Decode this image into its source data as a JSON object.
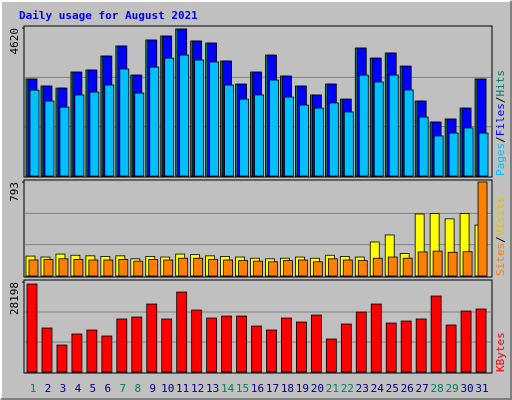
{
  "chart_data": [
    {
      "type": "bar",
      "title": "Daily usage for August 2021",
      "categories": [
        "1",
        "2",
        "3",
        "4",
        "5",
        "6",
        "7",
        "8",
        "9",
        "10",
        "11",
        "12",
        "13",
        "14",
        "15",
        "16",
        "17",
        "18",
        "19",
        "20",
        "21",
        "22",
        "23",
        "24",
        "25",
        "26",
        "27",
        "28",
        "29",
        "30",
        "31"
      ],
      "highlighted_categories": [
        "1",
        "7",
        "8",
        "14",
        "15",
        "21",
        "22",
        "28",
        "29"
      ],
      "highlight_color": "#00805c",
      "category_color": "#000080",
      "legend_separator": "/",
      "ylim": [
        0,
        4620
      ],
      "yticks": [
        4620
      ],
      "series": [
        {
          "name": "Hits",
          "color": "#00805c",
          "values": [
            3030,
            2810,
            2745,
            3245,
            3310,
            3745,
            4060,
            3150,
            4245,
            4370,
            4590,
            4215,
            4150,
            3590,
            2870,
            3245,
            3775,
            3120,
            2810,
            2530,
            2870,
            2400,
            3995,
            3680,
            3840,
            3430,
            2340,
            1685,
            1780,
            2120,
            3030
          ]
        },
        {
          "name": "Files",
          "color": "#0000ff",
          "values": [
            3030,
            2810,
            2745,
            3245,
            3310,
            3745,
            4060,
            3150,
            4245,
            4370,
            4590,
            4215,
            4150,
            3590,
            2870,
            3245,
            3775,
            3120,
            2810,
            2530,
            2870,
            2400,
            3995,
            3680,
            3840,
            3430,
            2340,
            1685,
            1780,
            2120,
            3030
          ]
        },
        {
          "name": "Pages",
          "color": "#00c0ff",
          "values": [
            2680,
            2340,
            2150,
            2530,
            2620,
            2840,
            3340,
            2590,
            3400,
            3680,
            3775,
            3620,
            3560,
            2840,
            2400,
            2530,
            2995,
            2465,
            2215,
            2120,
            2280,
            2000,
            3150,
            2935,
            3150,
            2685,
            1840,
            1250,
            1340,
            1500,
            1340
          ]
        }
      ]
    },
    {
      "type": "bar",
      "legend_separator": "/",
      "ylim": [
        0,
        793
      ],
      "yticks": [
        793
      ],
      "series": [
        {
          "name": "Visits",
          "color": "#ffff00",
          "values": [
            168,
            160,
            185,
            175,
            170,
            165,
            170,
            145,
            165,
            160,
            185,
            180,
            170,
            165,
            160,
            150,
            145,
            150,
            160,
            150,
            175,
            165,
            160,
            287,
            346,
            190,
            523,
            527,
            482,
            527,
            430
          ]
        },
        {
          "name": "Sites",
          "color": "#ff8000",
          "values": [
            135,
            140,
            145,
            140,
            135,
            135,
            140,
            125,
            140,
            135,
            150,
            150,
            140,
            135,
            130,
            125,
            120,
            130,
            135,
            120,
            145,
            135,
            130,
            150,
            160,
            150,
            203,
            210,
            200,
            205,
            793
          ]
        }
      ]
    },
    {
      "type": "bar",
      "ylim": [
        0,
        28198
      ],
      "yticks": [
        28198
      ],
      "series": [
        {
          "name": "KBytes",
          "color": "#ff0000",
          "values": [
            27570,
            13780,
            8450,
            11900,
            13150,
            11270,
            16600,
            17220,
            21290,
            16600,
            25050,
            19410,
            16910,
            17530,
            17530,
            14400,
            13150,
            16910,
            15660,
            17850,
            10330,
            15030,
            18790,
            21290,
            15340,
            15970,
            16600,
            23800,
            14720,
            19100,
            19730
          ]
        }
      ]
    }
  ]
}
